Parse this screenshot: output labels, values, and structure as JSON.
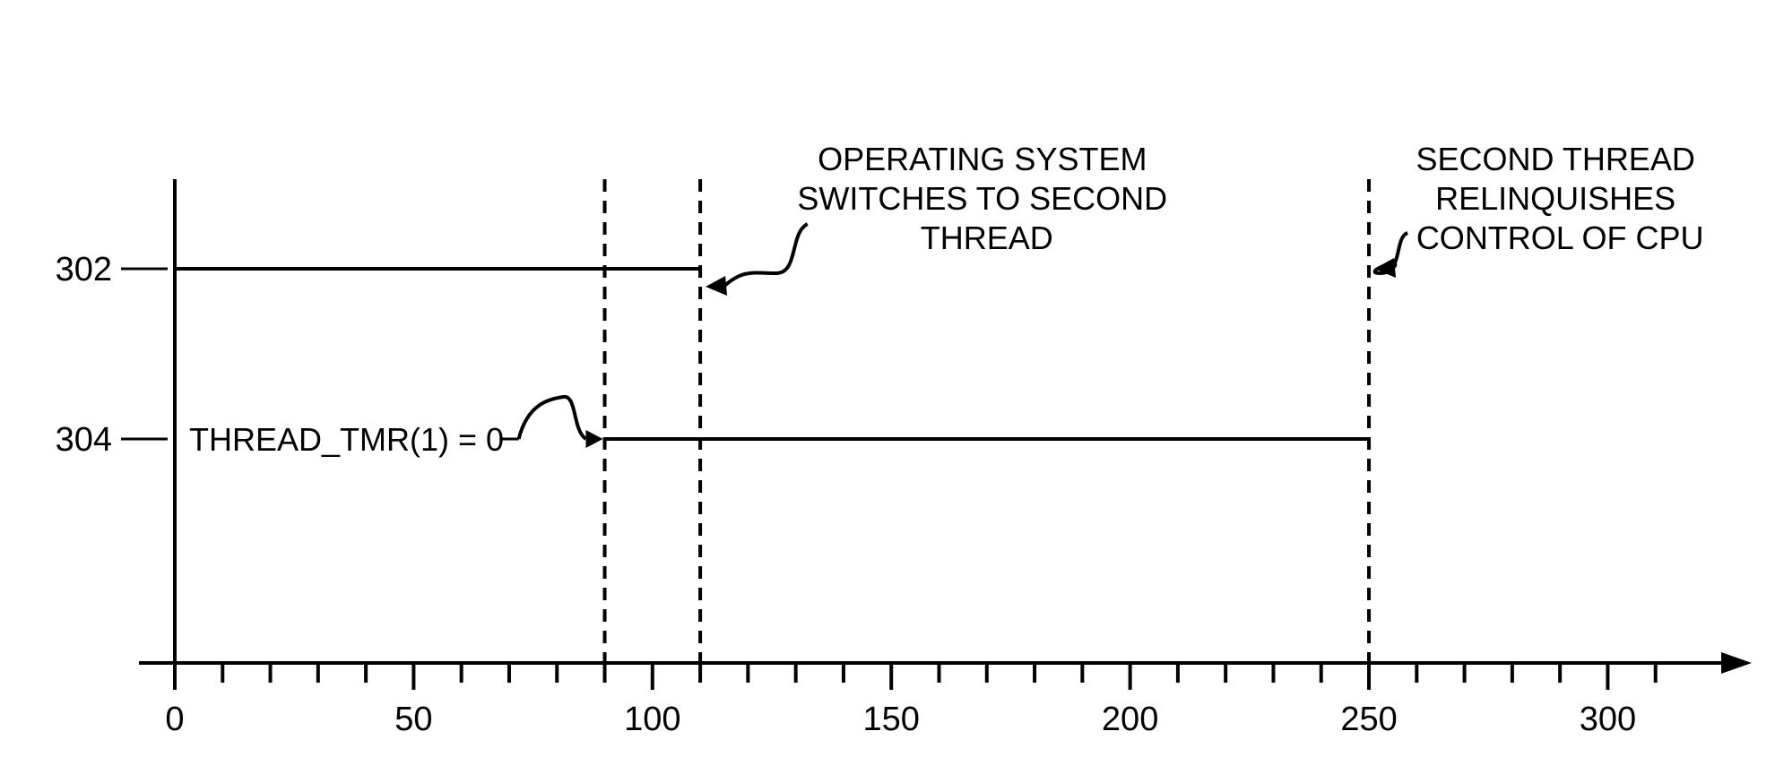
{
  "chart": {
    "type": "timeline-diagram",
    "background_color": "#ffffff",
    "stroke_color": "#000000",
    "axis": {
      "xlim": [
        0,
        320
      ],
      "tick_major_step": 50,
      "tick_minor_step": 10,
      "labels": [
        "0",
        "50",
        "100",
        "150",
        "200",
        "250",
        "300"
      ],
      "label_fontsize": 38,
      "stroke_width": 4
    },
    "row_labels": {
      "thread1": "302",
      "thread2": "304",
      "fontsize": 38
    },
    "annotations": {
      "timer_label": "THREAD_TMR(1) = 0",
      "switch_label_line1": "OPERATING SYSTEM",
      "switch_label_line2": "SWITCHES TO SECOND",
      "switch_label_line3": "THREAD",
      "relinquish_label_line1": "SECOND THREAD",
      "relinquish_label_line2": "RELINQUISHES",
      "relinquish_label_line3": "CONTROL OF CPU",
      "fontsize": 36
    },
    "events": {
      "thread1_start": 0,
      "thread1_end": 110,
      "thread2_start": 90,
      "thread2_end": 250,
      "vline_timer": 90,
      "vline_switch": 110,
      "vline_relinquish": 250
    },
    "row_y": {
      "thread1": 300,
      "thread2": 490
    },
    "dash_pattern": "14 10",
    "line_width": 4
  }
}
